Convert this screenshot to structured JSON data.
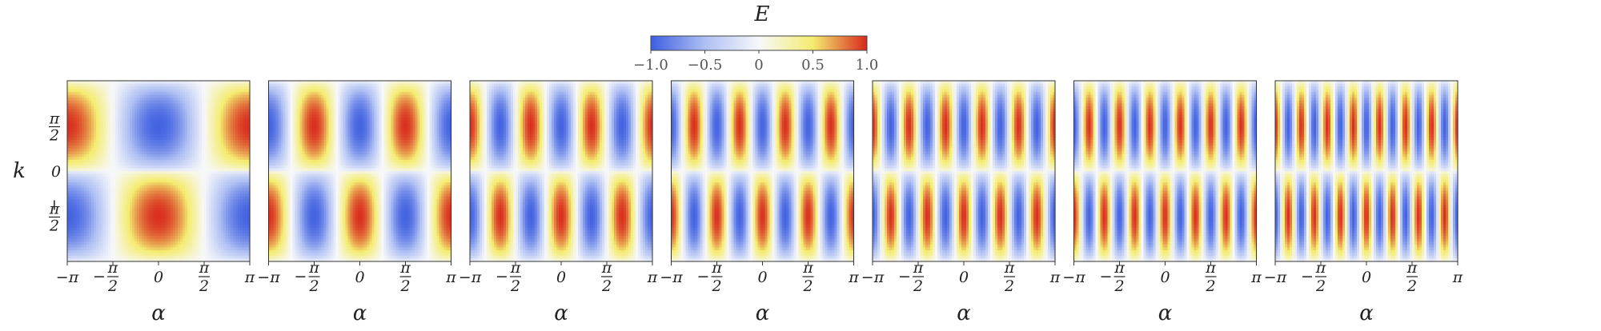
{
  "chart_data": {
    "type": "heatmap",
    "colorbar": {
      "title": "E",
      "range": [
        -1.0,
        1.0
      ],
      "tick_values": [
        -1.0,
        -0.5,
        0,
        0.5,
        1.0
      ],
      "tick_labels": [
        "−1.0",
        "−0.5",
        "0",
        "0.5",
        "1.0"
      ],
      "colors": [
        "#3f5fe0",
        "#aebff3",
        "#f7f8fa",
        "#f4ec70",
        "#d8281c"
      ]
    },
    "ylabel": "k",
    "y_ticks": [
      {
        "value": 1.5708,
        "num": "π",
        "den": "2",
        "sign": ""
      },
      {
        "value": 0,
        "num": "0",
        "den": "",
        "sign": ""
      },
      {
        "value": -1.5708,
        "num": "π",
        "den": "2",
        "sign": "−"
      }
    ],
    "ylim": [
      -3.1416,
      3.1416
    ],
    "xlim": [
      -3.1416,
      3.1416
    ],
    "x_ticks": [
      {
        "value": -3.1416,
        "label": "−π",
        "frac": false
      },
      {
        "value": -1.5708,
        "label": "−",
        "num": "π",
        "den": "2",
        "frac": true
      },
      {
        "value": 0,
        "label": "0",
        "frac": false
      },
      {
        "value": 1.5708,
        "label": "",
        "num": "π",
        "den": "2",
        "frac": true
      },
      {
        "value": 3.1416,
        "label": "π",
        "frac": false
      }
    ],
    "panels": [
      {
        "xlabel": "α",
        "harmonic": 1
      },
      {
        "xlabel": "α",
        "harmonic": 2
      },
      {
        "xlabel": "α",
        "harmonic": 3
      },
      {
        "xlabel": "α",
        "harmonic": 4
      },
      {
        "xlabel": "α",
        "harmonic": 5
      },
      {
        "xlabel": "α",
        "harmonic": 6
      },
      {
        "xlabel": "α",
        "harmonic": 7
      }
    ]
  }
}
